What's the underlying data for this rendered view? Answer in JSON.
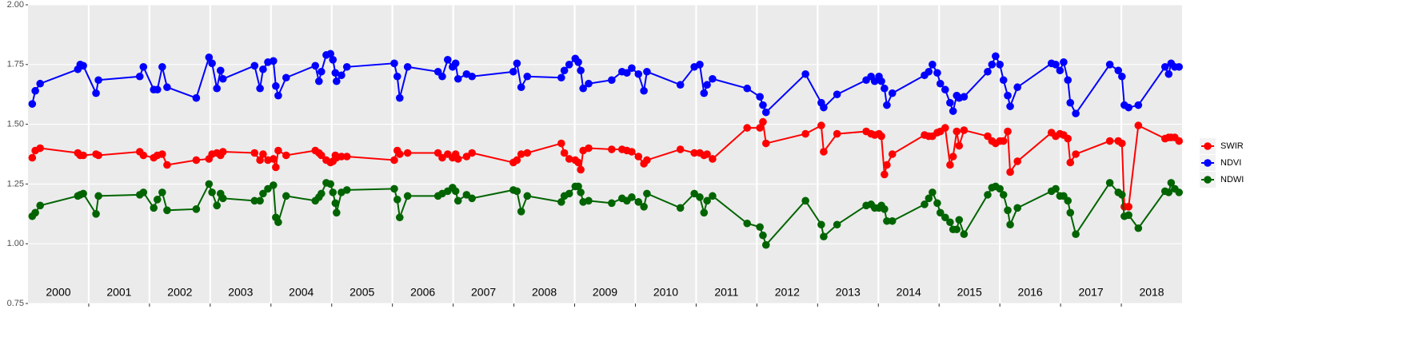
{
  "chart_data": {
    "type": "line",
    "x": [
      2000.07,
      2000.12,
      2000.2,
      2000.82,
      2000.86,
      2000.91,
      2001.12,
      2001.16,
      2001.84,
      2001.9,
      2002.07,
      2002.13,
      2002.21,
      2002.29,
      2002.77,
      2002.98,
      2003.03,
      2003.11,
      2003.17,
      2003.21,
      2003.73,
      2003.82,
      2003.87,
      2003.95,
      2004.04,
      2004.08,
      2004.12,
      2004.25,
      2004.73,
      2004.79,
      2004.83,
      2004.91,
      2004.98,
      2005.02,
      2005.06,
      2005.08,
      2005.16,
      2005.25,
      2006.03,
      2006.08,
      2006.12,
      2006.25,
      2006.75,
      2006.82,
      2006.91,
      2006.99,
      2007.04,
      2007.08,
      2007.22,
      2007.31,
      2007.99,
      2008.05,
      2008.12,
      2008.22,
      2008.78,
      2008.83,
      2008.91,
      2009.01,
      2009.06,
      2009.1,
      2009.14,
      2009.23,
      2009.61,
      2009.78,
      2009.86,
      2009.94,
      2010.05,
      2010.14,
      2010.19,
      2010.74,
      2010.97,
      2011.06,
      2011.13,
      2011.18,
      2011.27,
      2011.84,
      2012.05,
      2012.1,
      2012.15,
      2012.8,
      2013.06,
      2013.1,
      2013.32,
      2013.8,
      2013.88,
      2013.94,
      2014.01,
      2014.05,
      2014.1,
      2014.14,
      2014.23,
      2014.76,
      2014.83,
      2014.89,
      2014.97,
      2015.02,
      2015.1,
      2015.18,
      2015.23,
      2015.29,
      2015.33,
      2015.41,
      2015.8,
      2015.87,
      2015.93,
      2016.0,
      2016.06,
      2016.13,
      2016.17,
      2016.29,
      2016.85,
      2016.92,
      2016.99,
      2017.05,
      2017.12,
      2017.16,
      2017.25,
      2017.81,
      2017.95,
      2018.01,
      2018.05,
      2018.12,
      2018.28,
      2018.72,
      2018.78,
      2018.82,
      2018.88,
      2018.95
    ],
    "series": [
      {
        "name": "SWIR",
        "color": "#ff0000",
        "values": [
          1.36,
          1.39,
          1.4,
          1.38,
          1.37,
          1.37,
          1.375,
          1.37,
          1.385,
          1.37,
          1.36,
          1.37,
          1.375,
          1.33,
          1.35,
          1.355,
          1.375,
          1.38,
          1.37,
          1.385,
          1.38,
          1.35,
          1.375,
          1.35,
          1.355,
          1.32,
          1.39,
          1.37,
          1.39,
          1.38,
          1.37,
          1.35,
          1.34,
          1.345,
          1.37,
          1.36,
          1.365,
          1.365,
          1.35,
          1.39,
          1.375,
          1.38,
          1.38,
          1.36,
          1.375,
          1.36,
          1.375,
          1.355,
          1.365,
          1.38,
          1.34,
          1.35,
          1.375,
          1.38,
          1.42,
          1.38,
          1.355,
          1.35,
          1.34,
          1.31,
          1.39,
          1.4,
          1.395,
          1.395,
          1.39,
          1.385,
          1.365,
          1.335,
          1.35,
          1.395,
          1.38,
          1.38,
          1.37,
          1.375,
          1.355,
          1.485,
          1.485,
          1.51,
          1.42,
          1.46,
          1.495,
          1.385,
          1.46,
          1.47,
          1.46,
          1.455,
          1.46,
          1.45,
          1.29,
          1.33,
          1.375,
          1.455,
          1.45,
          1.45,
          1.465,
          1.47,
          1.485,
          1.33,
          1.365,
          1.47,
          1.41,
          1.475,
          1.45,
          1.43,
          1.42,
          1.43,
          1.43,
          1.47,
          1.3,
          1.345,
          1.465,
          1.45,
          1.46,
          1.455,
          1.44,
          1.34,
          1.375,
          1.43,
          1.43,
          1.42,
          1.155,
          1.155,
          1.495,
          1.44,
          1.445,
          1.445,
          1.445,
          1.43
        ]
      },
      {
        "name": "NDVI",
        "color": "#0000ff",
        "values": [
          1.585,
          1.64,
          1.67,
          1.73,
          1.75,
          1.745,
          1.63,
          1.685,
          1.7,
          1.74,
          1.645,
          1.645,
          1.74,
          1.655,
          1.61,
          1.78,
          1.755,
          1.65,
          1.725,
          1.69,
          1.745,
          1.65,
          1.73,
          1.76,
          1.765,
          1.66,
          1.62,
          1.695,
          1.745,
          1.68,
          1.72,
          1.79,
          1.795,
          1.77,
          1.715,
          1.68,
          1.705,
          1.74,
          1.755,
          1.7,
          1.61,
          1.74,
          1.72,
          1.7,
          1.77,
          1.74,
          1.755,
          1.69,
          1.71,
          1.7,
          1.72,
          1.755,
          1.655,
          1.7,
          1.695,
          1.725,
          1.75,
          1.775,
          1.76,
          1.725,
          1.65,
          1.67,
          1.685,
          1.72,
          1.715,
          1.735,
          1.71,
          1.64,
          1.72,
          1.665,
          1.74,
          1.75,
          1.63,
          1.665,
          1.69,
          1.65,
          1.615,
          1.58,
          1.55,
          1.71,
          1.59,
          1.57,
          1.625,
          1.685,
          1.7,
          1.68,
          1.7,
          1.68,
          1.65,
          1.58,
          1.63,
          1.705,
          1.72,
          1.75,
          1.715,
          1.67,
          1.645,
          1.59,
          1.555,
          1.62,
          1.61,
          1.615,
          1.72,
          1.75,
          1.785,
          1.75,
          1.685,
          1.62,
          1.575,
          1.655,
          1.755,
          1.75,
          1.725,
          1.76,
          1.685,
          1.59,
          1.545,
          1.75,
          1.725,
          1.7,
          1.58,
          1.57,
          1.58,
          1.74,
          1.71,
          1.755,
          1.74,
          1.74
        ]
      },
      {
        "name": "NDWI",
        "color": "#006400",
        "values": [
          1.115,
          1.13,
          1.16,
          1.2,
          1.205,
          1.21,
          1.125,
          1.2,
          1.205,
          1.215,
          1.15,
          1.185,
          1.215,
          1.14,
          1.145,
          1.25,
          1.215,
          1.16,
          1.21,
          1.19,
          1.18,
          1.18,
          1.21,
          1.23,
          1.245,
          1.11,
          1.09,
          1.2,
          1.18,
          1.195,
          1.21,
          1.255,
          1.25,
          1.215,
          1.17,
          1.13,
          1.215,
          1.225,
          1.23,
          1.185,
          1.11,
          1.2,
          1.2,
          1.21,
          1.22,
          1.235,
          1.22,
          1.18,
          1.205,
          1.19,
          1.225,
          1.22,
          1.135,
          1.2,
          1.175,
          1.2,
          1.21,
          1.24,
          1.24,
          1.215,
          1.175,
          1.18,
          1.17,
          1.19,
          1.18,
          1.195,
          1.175,
          1.155,
          1.21,
          1.15,
          1.21,
          1.195,
          1.13,
          1.18,
          1.2,
          1.085,
          1.07,
          1.035,
          0.995,
          1.18,
          1.08,
          1.03,
          1.08,
          1.16,
          1.165,
          1.15,
          1.15,
          1.16,
          1.145,
          1.095,
          1.095,
          1.165,
          1.19,
          1.215,
          1.17,
          1.13,
          1.11,
          1.09,
          1.06,
          1.06,
          1.1,
          1.04,
          1.205,
          1.235,
          1.24,
          1.23,
          1.205,
          1.14,
          1.08,
          1.15,
          1.22,
          1.23,
          1.2,
          1.2,
          1.18,
          1.13,
          1.04,
          1.255,
          1.215,
          1.205,
          1.115,
          1.12,
          1.065,
          1.22,
          1.215,
          1.255,
          1.23,
          1.215
        ]
      }
    ],
    "xlim": [
      2000,
      2019
    ],
    "xticks": [
      2001,
      2002,
      2003,
      2004,
      2005,
      2006,
      2007,
      2008,
      2009,
      2010,
      2011,
      2012,
      2013,
      2014,
      2015,
      2016,
      2017,
      2018
    ],
    "year_labels": [
      "2000",
      "2001",
      "2002",
      "2003",
      "2004",
      "2005",
      "2006",
      "2007",
      "2008",
      "2009",
      "2010",
      "2011",
      "2012",
      "2013",
      "2014",
      "2015",
      "2016",
      "2017",
      "2018"
    ],
    "ylim": [
      0.75,
      2.0
    ],
    "yticks": [
      {
        "value": 0.75,
        "label": "0.75"
      },
      {
        "value": 1.0,
        "label": "1.00"
      },
      {
        "value": 1.25,
        "label": "1.25"
      },
      {
        "value": 1.5,
        "label": "1.50"
      },
      {
        "value": 1.75,
        "label": "1.75"
      },
      {
        "value": 2.0,
        "label": "2.00"
      }
    ],
    "grid": true,
    "legend": "right"
  }
}
